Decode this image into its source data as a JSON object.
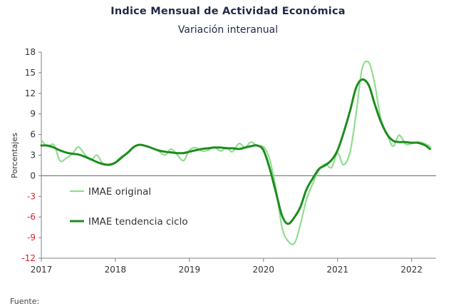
{
  "chart_data": {
    "type": "line",
    "title": "Indice Mensual de  Actividad Económica",
    "subtitle": "Variación interanual",
    "ylabel": "Porcentajes",
    "ylim": [
      -12,
      18
    ],
    "yticks": [
      18,
      15,
      12,
      9,
      6,
      3,
      0,
      -3,
      -6,
      -9,
      -12
    ],
    "xlim": [
      2017,
      2022.33
    ],
    "xticks": [
      "2017",
      "2018",
      "2019",
      "2020",
      "2021",
      "2022"
    ],
    "grid": false,
    "legend_position": "lower-left",
    "colors": {
      "original": "#90dd90",
      "tendencia": "#1e8c1e",
      "negative_tick": "#e02020",
      "positive_tick": "#333333",
      "zero_line": "#808080"
    },
    "series": [
      {
        "name": "IMAE original",
        "x": [
          2017.0,
          2017.08,
          2017.17,
          2017.25,
          2017.33,
          2017.42,
          2017.5,
          2017.58,
          2017.67,
          2017.75,
          2017.83,
          2017.92,
          2018.0,
          2018.08,
          2018.17,
          2018.25,
          2018.33,
          2018.42,
          2018.5,
          2018.58,
          2018.67,
          2018.75,
          2018.83,
          2018.92,
          2019.0,
          2019.08,
          2019.17,
          2019.25,
          2019.33,
          2019.42,
          2019.5,
          2019.58,
          2019.67,
          2019.75,
          2019.83,
          2019.92,
          2020.0,
          2020.08,
          2020.17,
          2020.25,
          2020.33,
          2020.42,
          2020.5,
          2020.58,
          2020.67,
          2020.75,
          2020.83,
          2020.92,
          2021.0,
          2021.08,
          2021.17,
          2021.25,
          2021.33,
          2021.42,
          2021.5,
          2021.58,
          2021.67,
          2021.75,
          2021.83,
          2021.92,
          2022.0,
          2022.08,
          2022.17,
          2022.25
        ],
        "values": [
          5.2,
          4.3,
          4.5,
          2.2,
          2.5,
          3.2,
          4.2,
          3.2,
          2.3,
          3.0,
          1.8,
          1.7,
          2.0,
          2.8,
          3.3,
          4.2,
          4.5,
          4.3,
          4.0,
          3.6,
          3.0,
          3.9,
          3.1,
          2.2,
          3.7,
          4.1,
          3.6,
          3.7,
          4.2,
          3.6,
          4.1,
          3.5,
          4.7,
          4.1,
          4.9,
          4.3,
          4.2,
          2.5,
          -2.0,
          -7.5,
          -9.5,
          -9.8,
          -7.0,
          -3.5,
          -1.0,
          0.8,
          1.7,
          1.2,
          3.3,
          1.6,
          3.5,
          9.0,
          15.5,
          16.5,
          13.5,
          8.5,
          6.0,
          4.3,
          5.9,
          4.6,
          4.7,
          4.9,
          4.7,
          4.3
        ]
      },
      {
        "name": "IMAE tendencia ciclo",
        "x": [
          2017.0,
          2017.08,
          2017.17,
          2017.25,
          2017.33,
          2017.42,
          2017.5,
          2017.58,
          2017.67,
          2017.75,
          2017.83,
          2017.92,
          2018.0,
          2018.08,
          2018.17,
          2018.25,
          2018.33,
          2018.42,
          2018.5,
          2018.58,
          2018.67,
          2018.75,
          2018.83,
          2018.92,
          2019.0,
          2019.08,
          2019.17,
          2019.25,
          2019.33,
          2019.42,
          2019.5,
          2019.58,
          2019.67,
          2019.75,
          2019.83,
          2019.92,
          2020.0,
          2020.08,
          2020.17,
          2020.25,
          2020.33,
          2020.42,
          2020.5,
          2020.58,
          2020.67,
          2020.75,
          2020.83,
          2020.92,
          2021.0,
          2021.08,
          2021.17,
          2021.25,
          2021.33,
          2021.42,
          2021.5,
          2021.58,
          2021.67,
          2021.75,
          2021.83,
          2021.92,
          2022.0,
          2022.08,
          2022.17,
          2022.25
        ],
        "values": [
          4.4,
          4.4,
          4.1,
          3.7,
          3.4,
          3.2,
          3.1,
          2.8,
          2.4,
          2.0,
          1.7,
          1.6,
          1.9,
          2.6,
          3.4,
          4.2,
          4.5,
          4.3,
          4.0,
          3.7,
          3.5,
          3.4,
          3.3,
          3.3,
          3.5,
          3.7,
          3.9,
          4.0,
          4.1,
          4.1,
          4.0,
          4.0,
          3.9,
          4.1,
          4.3,
          4.4,
          3.7,
          1.2,
          -2.5,
          -5.8,
          -7.0,
          -6.0,
          -4.5,
          -2.0,
          -0.3,
          1.0,
          1.5,
          2.3,
          3.7,
          6.2,
          9.5,
          12.8,
          14.0,
          13.2,
          10.5,
          8.0,
          6.0,
          5.1,
          4.9,
          4.9,
          4.8,
          4.8,
          4.5,
          3.9
        ]
      }
    ]
  },
  "source_label": "Fuente:"
}
